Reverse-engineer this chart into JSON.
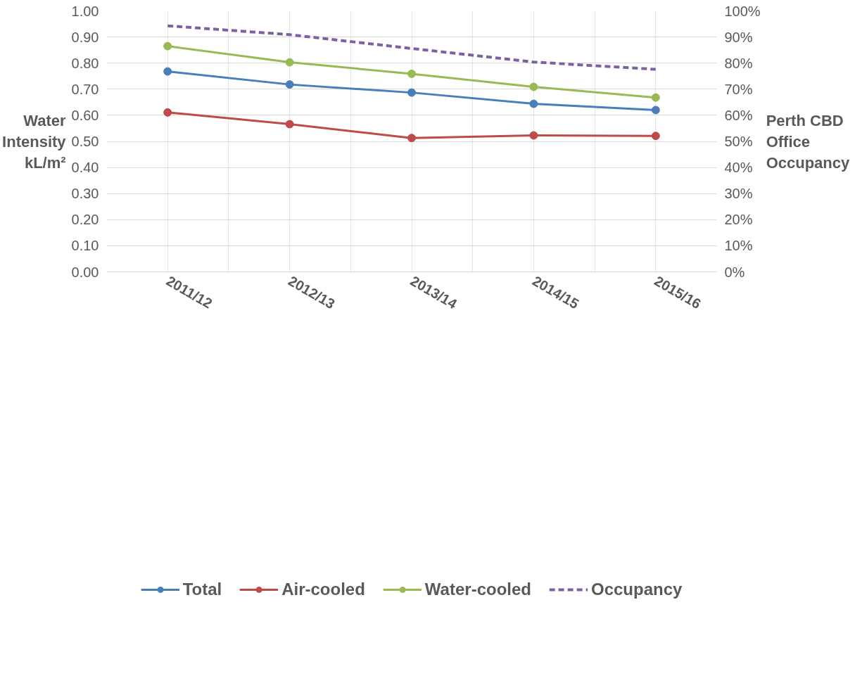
{
  "chart_data": {
    "type": "line",
    "ylabel": "Water Intensity kL/m²",
    "y2label": "Perth CBD Office Occupancy",
    "categories": [
      "2011/12",
      "2012/13",
      "2013/14",
      "2014/15",
      "2015/16"
    ],
    "series": [
      {
        "name": "Total",
        "color": "#4a7ebb",
        "marker": "circle",
        "line_style": "solid",
        "values": [
          0.768,
          0.718,
          0.687,
          0.644,
          0.62
        ]
      },
      {
        "name": "Air-cooled",
        "color": "#be4b48",
        "marker": "circle",
        "line_style": "solid",
        "values": [
          0.611,
          0.566,
          0.513,
          0.523,
          0.521
        ]
      },
      {
        "name": "Water-cooled",
        "color": "#98b954",
        "marker": "circle",
        "line_style": "solid",
        "values": [
          0.865,
          0.803,
          0.759,
          0.709,
          0.668
        ]
      },
      {
        "name": "Occupancy",
        "color": "#7d60a0",
        "marker": "none",
        "line_style": "dashed",
        "axis": "y2",
        "values": [
          94.3,
          90.9,
          85.6,
          80.4,
          77.6
        ]
      }
    ],
    "ylim": [
      0,
      1
    ],
    "yticks": [
      {
        "value": 0,
        "label": "0.00"
      },
      {
        "value": 0.1,
        "label": "0.10"
      },
      {
        "value": 0.2,
        "label": "0.20"
      },
      {
        "value": 0.3,
        "label": "0.30"
      },
      {
        "value": 0.4,
        "label": "0.40"
      },
      {
        "value": 0.5,
        "label": "0.50"
      },
      {
        "value": 0.6,
        "label": "0.60"
      },
      {
        "value": 0.7,
        "label": "0.70"
      },
      {
        "value": 0.8,
        "label": "0.80"
      },
      {
        "value": 0.9,
        "label": "0.90"
      },
      {
        "value": 1,
        "label": "1.00"
      }
    ],
    "y2lim": [
      0,
      100
    ],
    "y2ticks": [
      {
        "value": 0,
        "label": "0%"
      },
      {
        "value": 10,
        "label": "10%"
      },
      {
        "value": 20,
        "label": "20%"
      },
      {
        "value": 30,
        "label": "30%"
      },
      {
        "value": 40,
        "label": "40%"
      },
      {
        "value": 50,
        "label": "50%"
      },
      {
        "value": 60,
        "label": "60%"
      },
      {
        "value": 70,
        "label": "70%"
      },
      {
        "value": 80,
        "label": "80%"
      },
      {
        "value": 90,
        "label": "90%"
      },
      {
        "value": 100,
        "label": "100%"
      }
    ],
    "grid": true,
    "legend": "bottom"
  }
}
